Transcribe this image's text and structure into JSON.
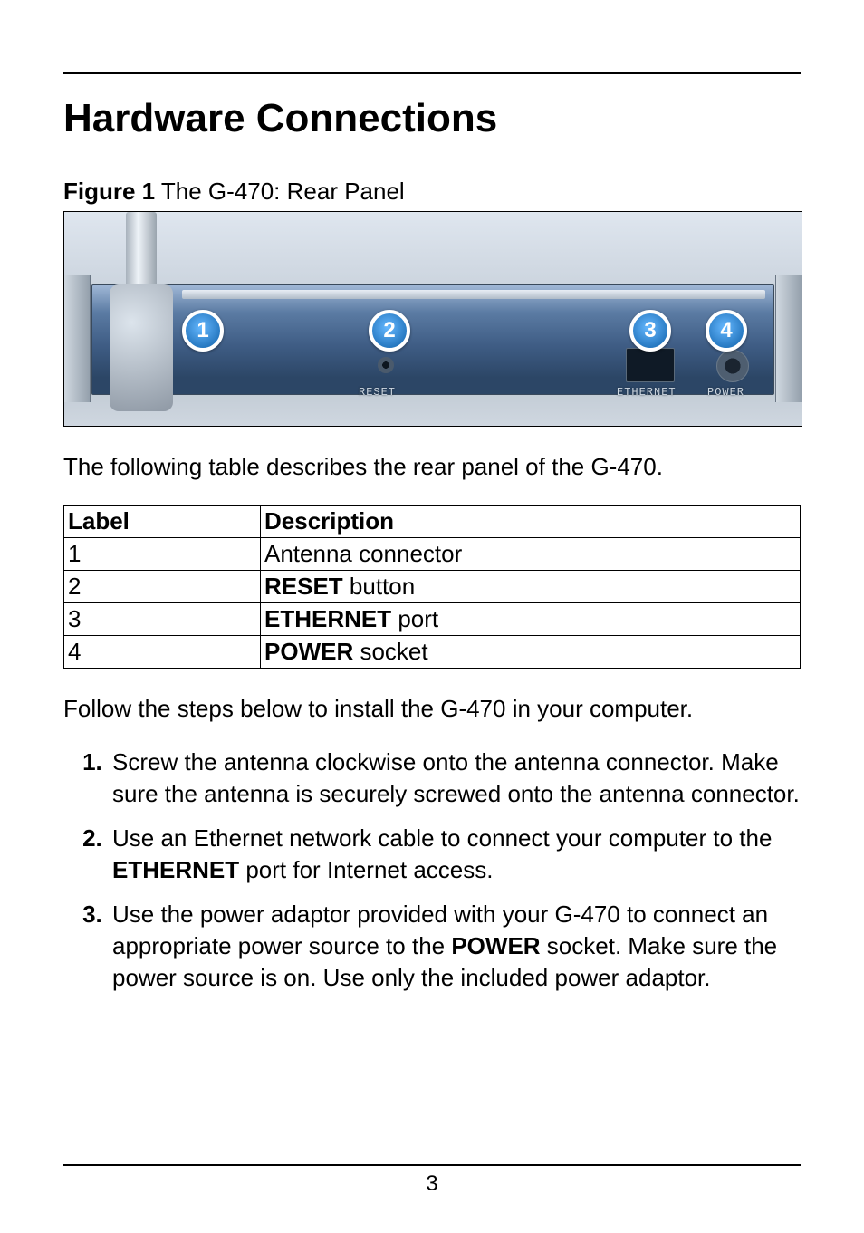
{
  "title": "Hardware Connections",
  "figure": {
    "caption_lead": "Figure 1",
    "caption_rest": " The G-470: Rear Panel",
    "callouts": [
      "1",
      "2",
      "3",
      "4"
    ],
    "panel_labels": {
      "reset": "RESET",
      "ethernet": "ETHERNET",
      "power": "POWER"
    }
  },
  "intro_para": "The following table describes the rear panel of the G-470.",
  "table": {
    "headers": {
      "label": "Label",
      "description": "Description"
    },
    "rows": [
      {
        "label": "1",
        "desc_pre": "",
        "desc_bold": "",
        "desc_post": "Antenna connector"
      },
      {
        "label": "2",
        "desc_pre": "",
        "desc_bold": "RESET",
        "desc_post": " button"
      },
      {
        "label": "3",
        "desc_pre": "",
        "desc_bold": "ETHERNET",
        "desc_post": " port"
      },
      {
        "label": "4",
        "desc_pre": "",
        "desc_bold": "POWER",
        "desc_post": " socket"
      }
    ]
  },
  "follow_para": "Follow the steps below to install the G-470 in your computer.",
  "steps": [
    {
      "runs": [
        {
          "t": "Screw the antenna clockwise onto the antenna connector. Make sure the antenna is securely screwed onto the antenna connector.",
          "b": false
        }
      ]
    },
    {
      "runs": [
        {
          "t": "Use an Ethernet network cable to connect your computer to the ",
          "b": false
        },
        {
          "t": "ETHERNET",
          "b": true
        },
        {
          "t": " port for Internet access.",
          "b": false
        }
      ]
    },
    {
      "runs": [
        {
          "t": "Use the power adaptor provided with your G-470 to connect an appropriate power source to the ",
          "b": false
        },
        {
          "t": "POWER",
          "b": true
        },
        {
          "t": " socket. Make sure the power source is on. Use only the included power adaptor.",
          "b": false
        }
      ]
    }
  ],
  "page_number": "3",
  "colors": {
    "callout_fill_inner": "#66b8ff",
    "callout_fill_outer": "#0d5fa8",
    "callout_border": "#ffffff",
    "device_gradient_top": "#9fb7d6",
    "device_gradient_bottom": "#2c4666",
    "bg": "#ffffff",
    "text": "#000000"
  }
}
